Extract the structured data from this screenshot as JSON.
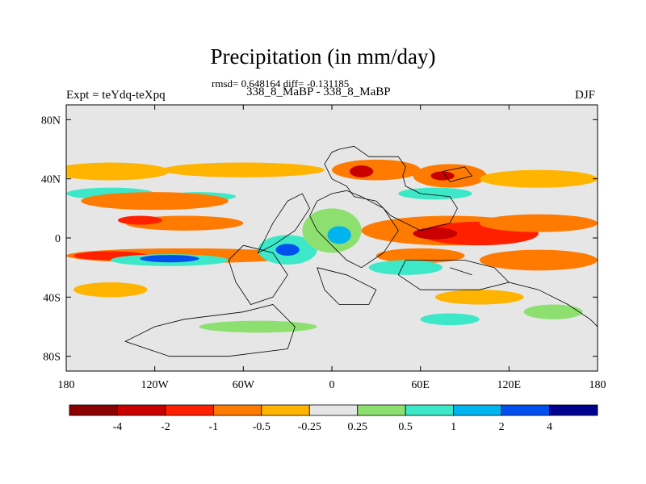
{
  "chart_data": {
    "type": "heatmap",
    "title": "Precipitation (in mm/day)",
    "stats_text": "rmsd= 0.648164 diff= -0.131185",
    "period_text": "338_8_MaBP - 338_8_MaBP",
    "left_label": "Expt = teYdq-teXpq",
    "right_label": "DJF",
    "x_range": [
      -180,
      180
    ],
    "y_range": [
      -90,
      90
    ],
    "x_ticks": [
      {
        "value": -180,
        "label": "180"
      },
      {
        "value": -120,
        "label": "120W"
      },
      {
        "value": -60,
        "label": "60W"
      },
      {
        "value": 0,
        "label": "0"
      },
      {
        "value": 60,
        "label": "60E"
      },
      {
        "value": 120,
        "label": "120E"
      },
      {
        "value": 180,
        "label": "180"
      }
    ],
    "y_ticks": [
      {
        "value": 80,
        "label": "80N"
      },
      {
        "value": 40,
        "label": "40N"
      },
      {
        "value": 0,
        "label": "0"
      },
      {
        "value": -40,
        "label": "40S"
      },
      {
        "value": -80,
        "label": "80S"
      }
    ],
    "colorbar": {
      "colors": [
        "#8b0000",
        "#c80000",
        "#ff2000",
        "#ff7a00",
        "#ffb400",
        "#e6e6e6",
        "#8de070",
        "#3de8c8",
        "#00b4f0",
        "#0050f0",
        "#000090"
      ],
      "labels": [
        "-4",
        "-2",
        "-1",
        "-0.5",
        "-0.25",
        "0.25",
        "0.5",
        "1",
        "2",
        "4"
      ]
    },
    "background_color": "#e6e6e6",
    "regions": [
      {
        "lon": -150,
        "lat": 45,
        "rx": 40,
        "ry": 6,
        "cls": 4
      },
      {
        "lon": -60,
        "lat": 46,
        "rx": 55,
        "ry": 5,
        "cls": 4
      },
      {
        "lon": 30,
        "lat": 46,
        "rx": 30,
        "ry": 7,
        "cls": 3
      },
      {
        "lon": 20,
        "lat": 45,
        "rx": 8,
        "ry": 4,
        "cls": 1
      },
      {
        "lon": 80,
        "lat": 42,
        "rx": 25,
        "ry": 8,
        "cls": 3
      },
      {
        "lon": 75,
        "lat": 42,
        "rx": 8,
        "ry": 3,
        "cls": 1
      },
      {
        "lon": 140,
        "lat": 40,
        "rx": 40,
        "ry": 6,
        "cls": 4
      },
      {
        "lon": -150,
        "lat": 30,
        "rx": 30,
        "ry": 4,
        "cls": 7
      },
      {
        "lon": -90,
        "lat": 28,
        "rx": 25,
        "ry": 3,
        "cls": 7
      },
      {
        "lon": 70,
        "lat": 30,
        "rx": 25,
        "ry": 4,
        "cls": 7
      },
      {
        "lon": -120,
        "lat": 25,
        "rx": 50,
        "ry": 6,
        "cls": 3
      },
      {
        "lon": -100,
        "lat": 10,
        "rx": 40,
        "ry": 5,
        "cls": 3
      },
      {
        "lon": -130,
        "lat": 12,
        "rx": 15,
        "ry": 3,
        "cls": 2
      },
      {
        "lon": 80,
        "lat": 5,
        "rx": 60,
        "ry": 10,
        "cls": 3
      },
      {
        "lon": 100,
        "lat": 3,
        "rx": 40,
        "ry": 8,
        "cls": 2
      },
      {
        "lon": 70,
        "lat": 3,
        "rx": 15,
        "ry": 4,
        "cls": 1
      },
      {
        "lon": 140,
        "lat": 10,
        "rx": 40,
        "ry": 6,
        "cls": 3
      },
      {
        "lon": -100,
        "lat": -12,
        "rx": 80,
        "ry": 5,
        "cls": 3
      },
      {
        "lon": -150,
        "lat": -12,
        "rx": 25,
        "ry": 3,
        "cls": 2
      },
      {
        "lon": 60,
        "lat": -12,
        "rx": 30,
        "ry": 5,
        "cls": 3
      },
      {
        "lon": 140,
        "lat": -15,
        "rx": 40,
        "ry": 7,
        "cls": 3
      },
      {
        "lon": -110,
        "lat": -15,
        "rx": 40,
        "ry": 4,
        "cls": 7
      },
      {
        "lon": -110,
        "lat": -14,
        "rx": 20,
        "ry": 2.5,
        "cls": 9
      },
      {
        "lon": -30,
        "lat": -8,
        "rx": 20,
        "ry": 10,
        "cls": 7
      },
      {
        "lon": -30,
        "lat": -8,
        "rx": 8,
        "ry": 4,
        "cls": 9
      },
      {
        "lon": 0,
        "lat": 5,
        "rx": 20,
        "ry": 15,
        "cls": 6
      },
      {
        "lon": 5,
        "lat": 2,
        "rx": 8,
        "ry": 6,
        "cls": 8
      },
      {
        "lon": 50,
        "lat": -20,
        "rx": 25,
        "ry": 5,
        "cls": 7
      },
      {
        "lon": -150,
        "lat": -35,
        "rx": 25,
        "ry": 5,
        "cls": 4
      },
      {
        "lon": 100,
        "lat": -40,
        "rx": 30,
        "ry": 5,
        "cls": 4
      },
      {
        "lon": -50,
        "lat": -60,
        "rx": 40,
        "ry": 4,
        "cls": 6
      },
      {
        "lon": 80,
        "lat": -55,
        "rx": 20,
        "ry": 4,
        "cls": 7
      },
      {
        "lon": 150,
        "lat": -50,
        "rx": 20,
        "ry": 5,
        "cls": 6
      }
    ],
    "coastlines": [
      [
        [
          5,
          60
        ],
        [
          15,
          62
        ],
        [
          25,
          55
        ],
        [
          45,
          55
        ],
        [
          50,
          48
        ],
        [
          48,
          42
        ],
        [
          50,
          35
        ],
        [
          60,
          30
        ],
        [
          80,
          28
        ],
        [
          85,
          20
        ],
        [
          80,
          10
        ],
        [
          60,
          5
        ],
        [
          40,
          15
        ],
        [
          30,
          25
        ],
        [
          15,
          28
        ],
        [
          10,
          35
        ],
        [
          0,
          40
        ],
        [
          -5,
          50
        ],
        [
          0,
          58
        ],
        [
          5,
          60
        ]
      ],
      [
        [
          -10,
          25
        ],
        [
          0,
          30
        ],
        [
          10,
          32
        ],
        [
          20,
          28
        ],
        [
          35,
          20
        ],
        [
          45,
          5
        ],
        [
          35,
          -10
        ],
        [
          20,
          -20
        ],
        [
          10,
          -15
        ],
        [
          0,
          -5
        ],
        [
          -10,
          5
        ],
        [
          -15,
          15
        ],
        [
          -10,
          25
        ]
      ],
      [
        [
          -40,
          10
        ],
        [
          -30,
          25
        ],
        [
          -20,
          30
        ],
        [
          -15,
          20
        ],
        [
          -25,
          5
        ],
        [
          -40,
          -5
        ],
        [
          -50,
          -10
        ],
        [
          -45,
          0
        ],
        [
          -40,
          10
        ]
      ],
      [
        [
          -60,
          -5
        ],
        [
          -40,
          -10
        ],
        [
          -30,
          -25
        ],
        [
          -40,
          -40
        ],
        [
          -55,
          -45
        ],
        [
          -65,
          -30
        ],
        [
          -70,
          -15
        ],
        [
          -60,
          -5
        ]
      ],
      [
        [
          -10,
          -20
        ],
        [
          10,
          -25
        ],
        [
          30,
          -35
        ],
        [
          25,
          -45
        ],
        [
          5,
          -45
        ],
        [
          -5,
          -35
        ],
        [
          -10,
          -20
        ]
      ],
      [
        [
          50,
          -15
        ],
        [
          90,
          -15
        ],
        [
          110,
          -20
        ],
        [
          120,
          -30
        ],
        [
          100,
          -35
        ],
        [
          60,
          -35
        ],
        [
          45,
          -25
        ],
        [
          50,
          -15
        ]
      ],
      [
        [
          -100,
          -55
        ],
        [
          -60,
          -50
        ],
        [
          -40,
          -45
        ],
        [
          -25,
          -60
        ],
        [
          -30,
          -75
        ],
        [
          -70,
          -80
        ],
        [
          -110,
          -80
        ],
        [
          -140,
          -70
        ],
        [
          -120,
          -60
        ],
        [
          -100,
          -55
        ]
      ],
      [
        [
          120,
          -30
        ],
        [
          140,
          -35
        ],
        [
          160,
          -45
        ],
        [
          175,
          -55
        ],
        [
          180,
          -60
        ]
      ],
      [
        [
          80,
          -20
        ],
        [
          95,
          -25
        ]
      ],
      [
        [
          75,
          45
        ],
        [
          90,
          48
        ],
        [
          95,
          42
        ],
        [
          80,
          38
        ],
        [
          75,
          45
        ]
      ]
    ]
  }
}
